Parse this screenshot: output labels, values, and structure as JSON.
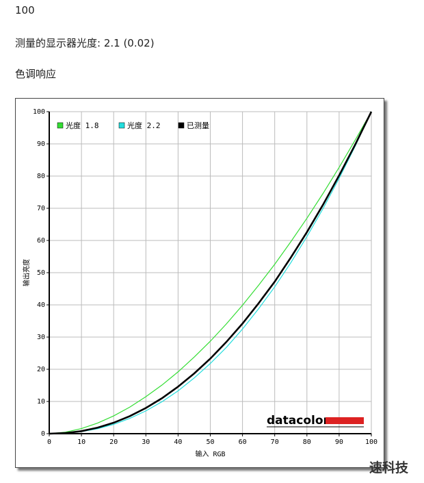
{
  "lines": [
    "100",
    "测量的显示器光度:  2.1 (0.02)",
    "色调响应"
  ],
  "watermark": "速科技",
  "chart_data": {
    "type": "line",
    "logo": "datacolor",
    "x_label": "输入 RGB",
    "y_label": "输出亮度",
    "x": [
      0,
      5,
      10,
      15,
      20,
      25,
      30,
      35,
      40,
      45,
      50,
      55,
      60,
      65,
      70,
      75,
      80,
      85,
      90,
      95,
      100
    ],
    "series": [
      {
        "name": "光度 1.8",
        "color": "#33dd33",
        "width": 1.2,
        "values": [
          0,
          0.46,
          1.58,
          3.29,
          5.52,
          8.25,
          11.5,
          15.1,
          19.2,
          23.8,
          28.7,
          34.1,
          39.9,
          46.1,
          52.6,
          59.6,
          66.9,
          74.6,
          82.7,
          91.2,
          100
        ]
      },
      {
        "name": "光度 2.2",
        "color": "#22dddd",
        "width": 1.2,
        "values": [
          0,
          0.14,
          0.63,
          1.54,
          2.9,
          4.74,
          7.07,
          9.93,
          13.3,
          17.3,
          21.8,
          26.8,
          32.5,
          38.8,
          45.6,
          53.1,
          61.2,
          69.9,
          79.3,
          89.3,
          100
        ]
      },
      {
        "name": "已测量",
        "color": "#000000",
        "width": 2.6,
        "values": [
          0,
          0.19,
          0.79,
          1.86,
          3.4,
          5.44,
          7.98,
          11,
          14.6,
          18.7,
          23.3,
          28.5,
          34.2,
          40.5,
          47.2,
          54.7,
          62.6,
          71.1,
          80.2,
          89.8,
          100
        ]
      }
    ],
    "xlim": [
      0,
      100
    ],
    "ylim": [
      0,
      100
    ],
    "xticks": [
      0,
      10,
      20,
      30,
      40,
      50,
      60,
      70,
      80,
      90,
      100
    ],
    "yticks": [
      0,
      10,
      20,
      30,
      40,
      50,
      60,
      70,
      80,
      90,
      100
    ],
    "grid": true
  }
}
